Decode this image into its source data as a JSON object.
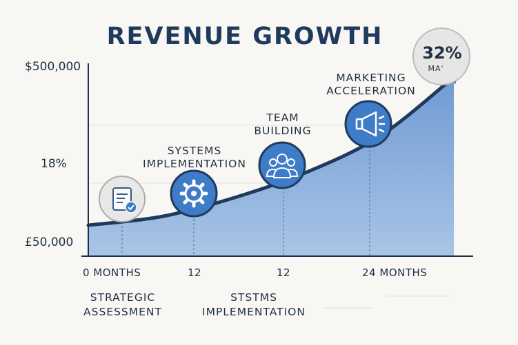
{
  "chart_data": {
    "type": "area",
    "title": "REVENUE GROWTH",
    "y_tick_labels": [
      "$500,000",
      "18%",
      "£50,000"
    ],
    "x_tick_labels": [
      "0 MONTHS",
      "12",
      "12",
      "24 MONTHS"
    ],
    "series": [
      {
        "x": [
          0,
          6,
          12,
          18,
          24,
          30
        ],
        "values": [
          50000,
          75000,
          130000,
          205000,
          310000,
          480000
        ]
      }
    ],
    "milestones": [
      {
        "label_lines": [
          "STRATEGIC",
          "ASSESSMENT"
        ],
        "icon": "checklist-icon"
      },
      {
        "label_lines": [
          "SYSTEMS",
          "IMPLEMENTATION"
        ],
        "icon": "gear-icon"
      },
      {
        "label_lines": [
          "TEAM",
          "BUILDING"
        ],
        "icon": "team-icon"
      },
      {
        "label_lines": [
          "MARKETING",
          "ACCELERATION"
        ],
        "icon": "megaphone-icon"
      }
    ],
    "bottom_labels": [
      {
        "lines": [
          "STRATEGIC",
          "ASSESSMENT"
        ]
      },
      {
        "lines": [
          "STSTMS",
          "IMPLEMENTATION"
        ]
      }
    ],
    "badge": {
      "value": "32%",
      "sublabel": "MA'"
    },
    "colors": {
      "title": "#1f3a5c",
      "curve": "#1f3a5c",
      "area_fill": "#7ea6d8",
      "icon_circle": "#3f7cc7",
      "badge_fill": "#e4e4e4"
    }
  }
}
